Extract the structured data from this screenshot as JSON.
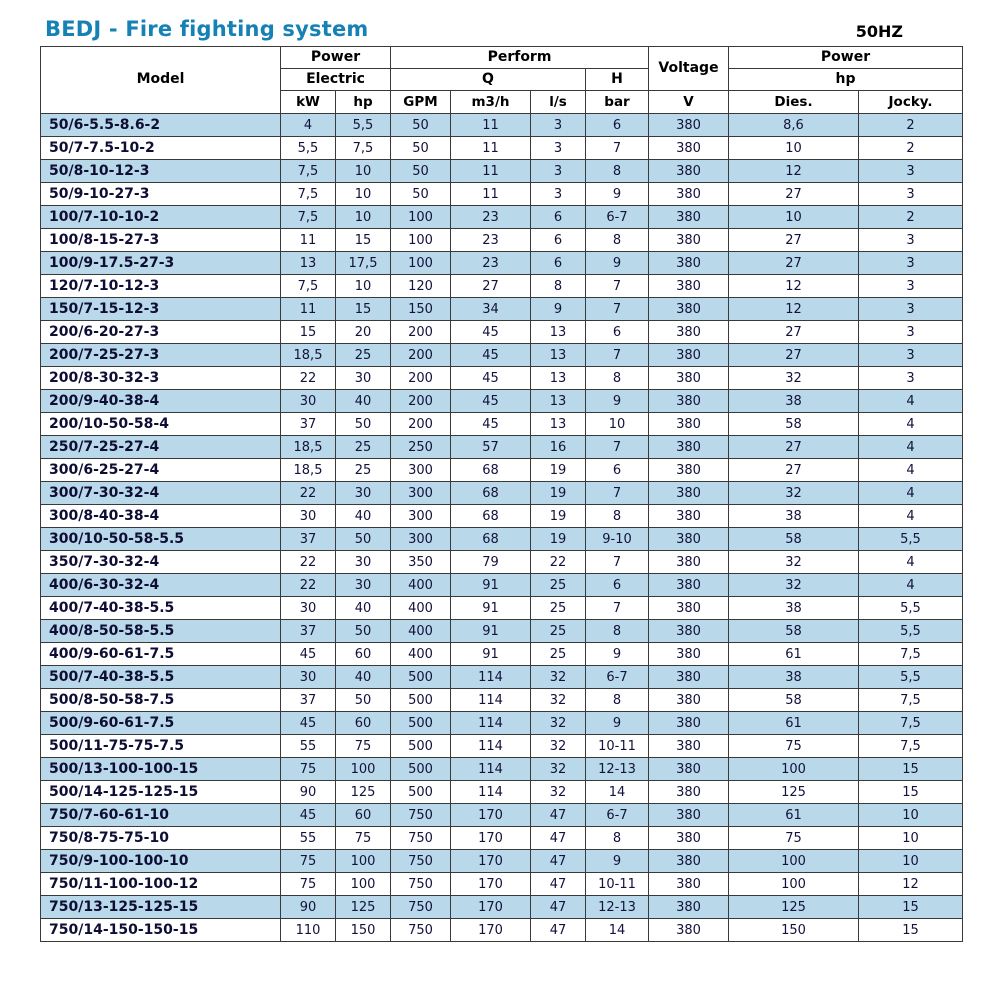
{
  "page": {
    "title": "BEDJ - Fire fighting system",
    "frequency": "50HZ"
  },
  "colors": {
    "title": "#1581b5",
    "alt_row": "#b9d9ea",
    "border": "#3a3a3a"
  },
  "table": {
    "header": {
      "model": "Model",
      "power_electric_top": "Power",
      "electric": "Electric",
      "perform": "Perform",
      "q": "Q",
      "h": "H",
      "voltage": "Voltage",
      "power_hp_top": "Power",
      "hp_sub": "hp",
      "units": [
        "kW",
        "hp",
        "GPM",
        "m3/h",
        "l/s",
        "bar",
        "V",
        "Dies.",
        "Jocky."
      ]
    },
    "rows": [
      [
        "50/6-5.5-8.6-2",
        "4",
        "5,5",
        "50",
        "11",
        "3",
        "6",
        "380",
        "8,6",
        "2"
      ],
      [
        "50/7-7.5-10-2",
        "5,5",
        "7,5",
        "50",
        "11",
        "3",
        "7",
        "380",
        "10",
        "2"
      ],
      [
        "50/8-10-12-3",
        "7,5",
        "10",
        "50",
        "11",
        "3",
        "8",
        "380",
        "12",
        "3"
      ],
      [
        "50/9-10-27-3",
        "7,5",
        "10",
        "50",
        "11",
        "3",
        "9",
        "380",
        "27",
        "3"
      ],
      [
        "100/7-10-10-2",
        "7,5",
        "10",
        "100",
        "23",
        "6",
        "6-7",
        "380",
        "10",
        "2"
      ],
      [
        "100/8-15-27-3",
        "11",
        "15",
        "100",
        "23",
        "6",
        "8",
        "380",
        "27",
        "3"
      ],
      [
        "100/9-17.5-27-3",
        "13",
        "17,5",
        "100",
        "23",
        "6",
        "9",
        "380",
        "27",
        "3"
      ],
      [
        "120/7-10-12-3",
        "7,5",
        "10",
        "120",
        "27",
        "8",
        "7",
        "380",
        "12",
        "3"
      ],
      [
        "150/7-15-12-3",
        "11",
        "15",
        "150",
        "34",
        "9",
        "7",
        "380",
        "12",
        "3"
      ],
      [
        "200/6-20-27-3",
        "15",
        "20",
        "200",
        "45",
        "13",
        "6",
        "380",
        "27",
        "3"
      ],
      [
        "200/7-25-27-3",
        "18,5",
        "25",
        "200",
        "45",
        "13",
        "7",
        "380",
        "27",
        "3"
      ],
      [
        "200/8-30-32-3",
        "22",
        "30",
        "200",
        "45",
        "13",
        "8",
        "380",
        "32",
        "3"
      ],
      [
        "200/9-40-38-4",
        "30",
        "40",
        "200",
        "45",
        "13",
        "9",
        "380",
        "38",
        "4"
      ],
      [
        "200/10-50-58-4",
        "37",
        "50",
        "200",
        "45",
        "13",
        "10",
        "380",
        "58",
        "4"
      ],
      [
        "250/7-25-27-4",
        "18,5",
        "25",
        "250",
        "57",
        "16",
        "7",
        "380",
        "27",
        "4"
      ],
      [
        "300/6-25-27-4",
        "18,5",
        "25",
        "300",
        "68",
        "19",
        "6",
        "380",
        "27",
        "4"
      ],
      [
        "300/7-30-32-4",
        "22",
        "30",
        "300",
        "68",
        "19",
        "7",
        "380",
        "32",
        "4"
      ],
      [
        "300/8-40-38-4",
        "30",
        "40",
        "300",
        "68",
        "19",
        "8",
        "380",
        "38",
        "4"
      ],
      [
        "300/10-50-58-5.5",
        "37",
        "50",
        "300",
        "68",
        "19",
        "9-10",
        "380",
        "58",
        "5,5"
      ],
      [
        "350/7-30-32-4",
        "22",
        "30",
        "350",
        "79",
        "22",
        "7",
        "380",
        "32",
        "4"
      ],
      [
        "400/6-30-32-4",
        "22",
        "30",
        "400",
        "91",
        "25",
        "6",
        "380",
        "32",
        "4"
      ],
      [
        "400/7-40-38-5.5",
        "30",
        "40",
        "400",
        "91",
        "25",
        "7",
        "380",
        "38",
        "5,5"
      ],
      [
        "400/8-50-58-5.5",
        "37",
        "50",
        "400",
        "91",
        "25",
        "8",
        "380",
        "58",
        "5,5"
      ],
      [
        "400/9-60-61-7.5",
        "45",
        "60",
        "400",
        "91",
        "25",
        "9",
        "380",
        "61",
        "7,5"
      ],
      [
        "500/7-40-38-5.5",
        "30",
        "40",
        "500",
        "114",
        "32",
        "6-7",
        "380",
        "38",
        "5,5"
      ],
      [
        "500/8-50-58-7.5",
        "37",
        "50",
        "500",
        "114",
        "32",
        "8",
        "380",
        "58",
        "7,5"
      ],
      [
        "500/9-60-61-7.5",
        "45",
        "60",
        "500",
        "114",
        "32",
        "9",
        "380",
        "61",
        "7,5"
      ],
      [
        "500/11-75-75-7.5",
        "55",
        "75",
        "500",
        "114",
        "32",
        "10-11",
        "380",
        "75",
        "7,5"
      ],
      [
        "500/13-100-100-15",
        "75",
        "100",
        "500",
        "114",
        "32",
        "12-13",
        "380",
        "100",
        "15"
      ],
      [
        "500/14-125-125-15",
        "90",
        "125",
        "500",
        "114",
        "32",
        "14",
        "380",
        "125",
        "15"
      ],
      [
        "750/7-60-61-10",
        "45",
        "60",
        "750",
        "170",
        "47",
        "6-7",
        "380",
        "61",
        "10"
      ],
      [
        "750/8-75-75-10",
        "55",
        "75",
        "750",
        "170",
        "47",
        "8",
        "380",
        "75",
        "10"
      ],
      [
        "750/9-100-100-10",
        "75",
        "100",
        "750",
        "170",
        "47",
        "9",
        "380",
        "100",
        "10"
      ],
      [
        "750/11-100-100-12",
        "75",
        "100",
        "750",
        "170",
        "47",
        "10-11",
        "380",
        "100",
        "12"
      ],
      [
        "750/13-125-125-15",
        "90",
        "125",
        "750",
        "170",
        "47",
        "12-13",
        "380",
        "125",
        "15"
      ],
      [
        "750/14-150-150-15",
        "110",
        "150",
        "750",
        "170",
        "47",
        "14",
        "380",
        "150",
        "15"
      ]
    ]
  }
}
